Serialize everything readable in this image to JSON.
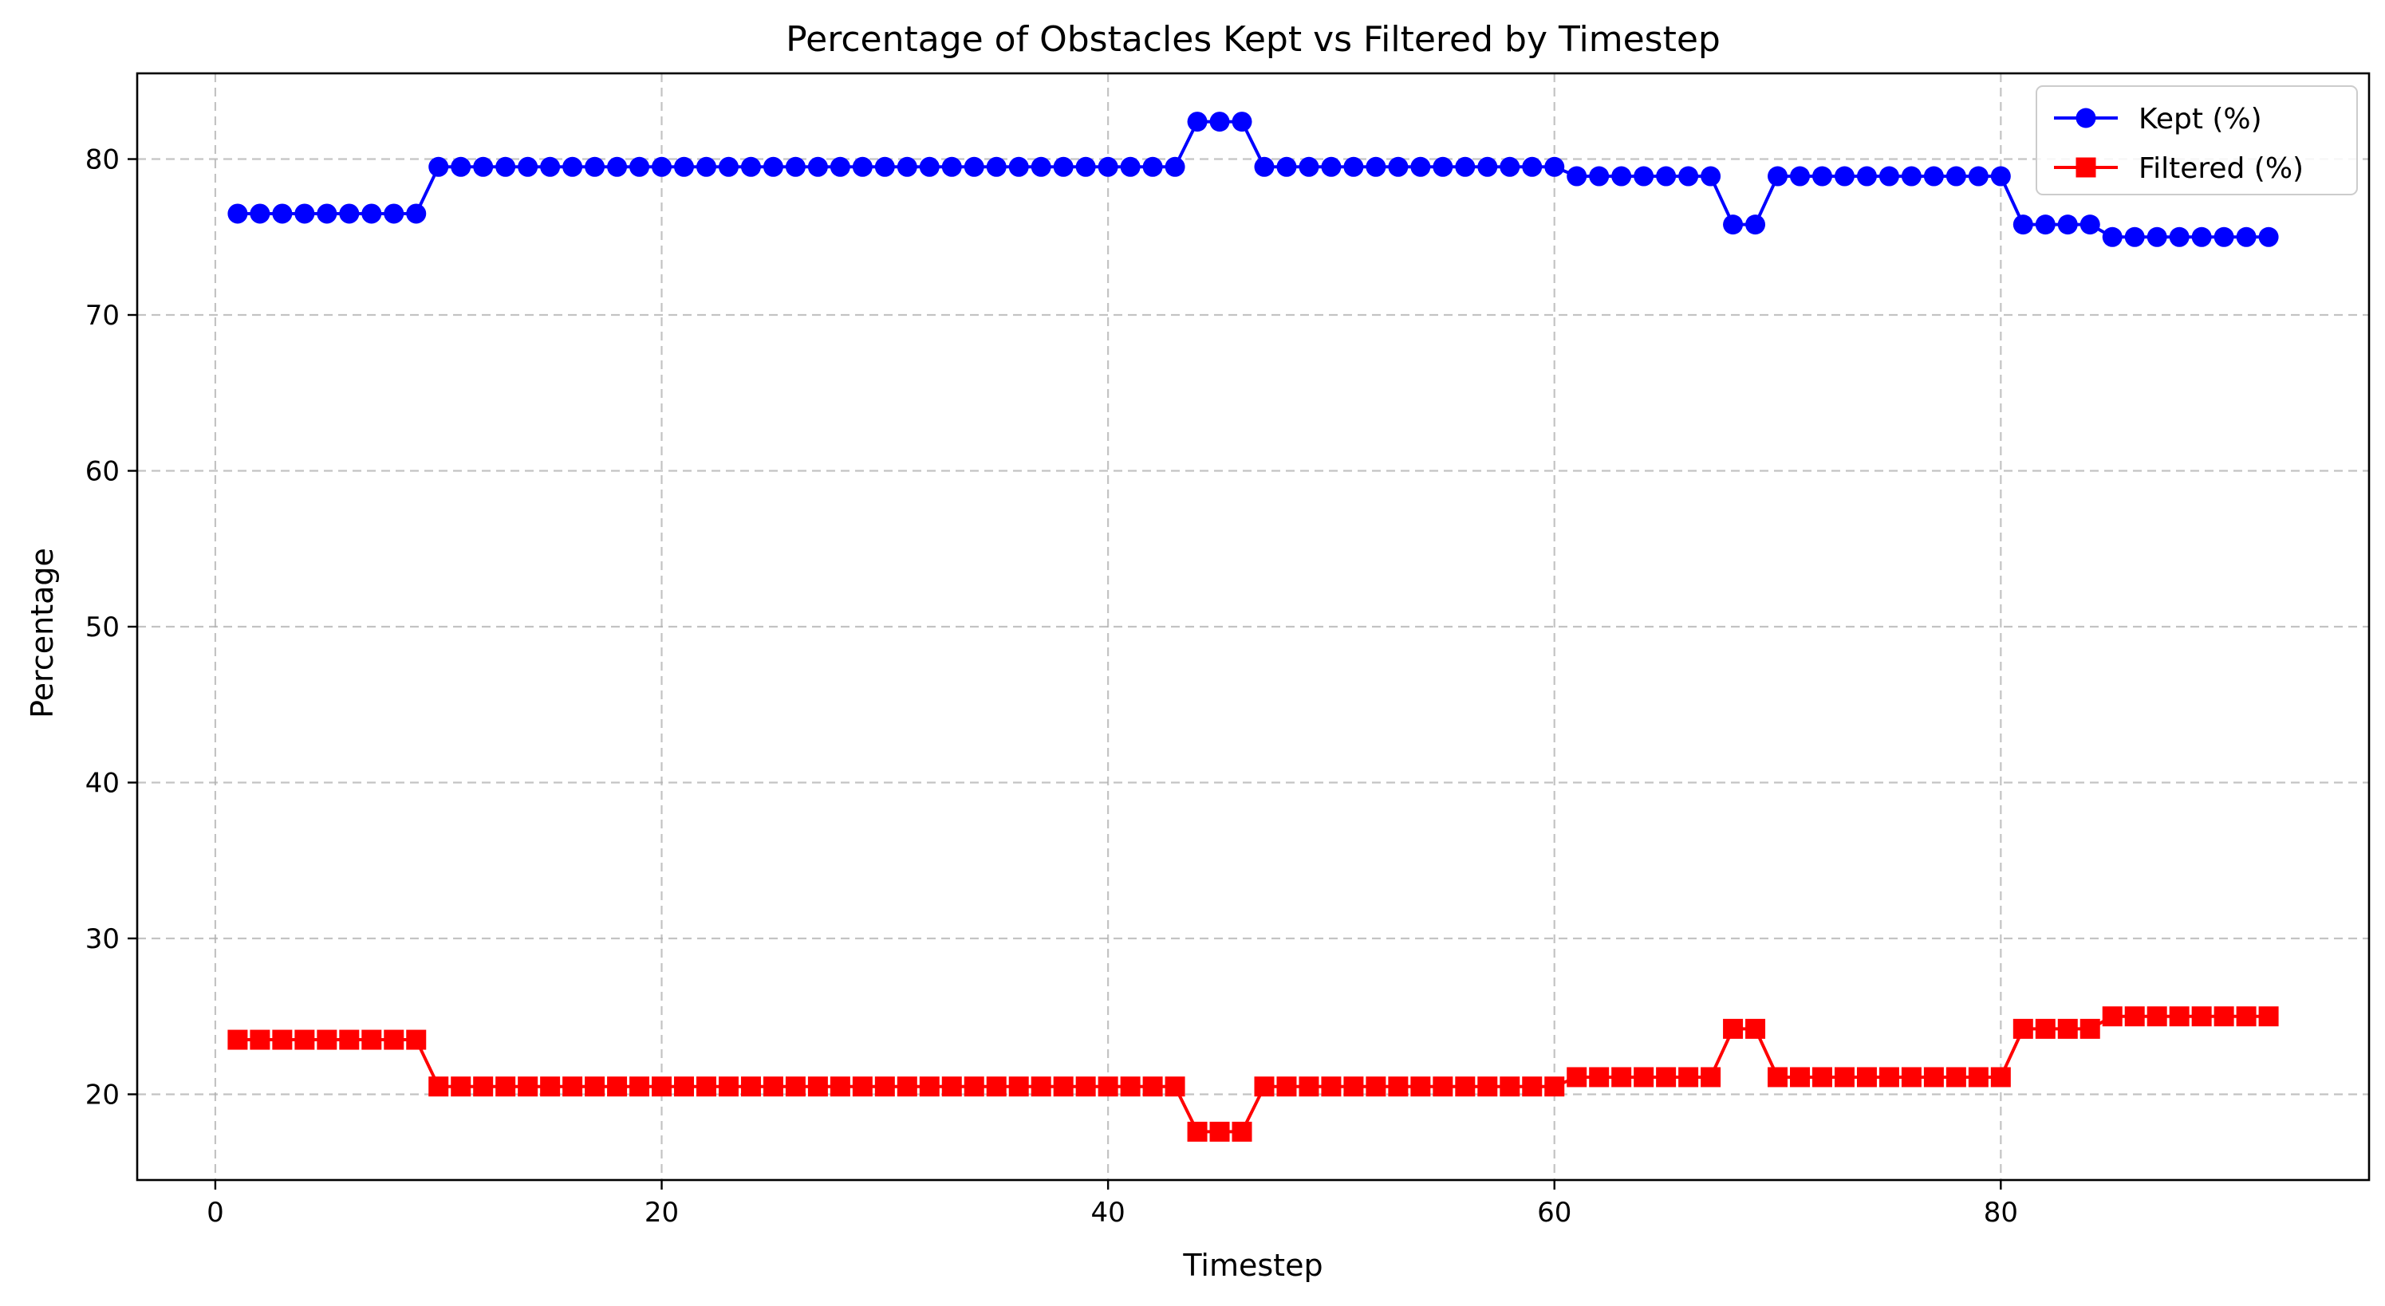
{
  "chart_data": {
    "type": "line",
    "title": "Percentage of Obstacles Kept vs Filtered by Timestep",
    "xlabel": "Timestep",
    "ylabel": "Percentage",
    "xlim": [
      -3.5,
      96.5
    ],
    "ylim": [
      14.5,
      85.5
    ],
    "xticks": [
      0,
      20,
      40,
      60,
      80
    ],
    "yticks": [
      20,
      30,
      40,
      50,
      60,
      70,
      80
    ],
    "grid": true,
    "legend_position": "top-right",
    "x": [
      1,
      2,
      3,
      4,
      5,
      6,
      7,
      8,
      9,
      10,
      11,
      12,
      13,
      14,
      15,
      16,
      17,
      18,
      19,
      20,
      21,
      22,
      23,
      24,
      25,
      26,
      27,
      28,
      29,
      30,
      31,
      32,
      33,
      34,
      35,
      36,
      37,
      38,
      39,
      40,
      41,
      42,
      43,
      44,
      45,
      46,
      47,
      48,
      49,
      50,
      51,
      52,
      53,
      54,
      55,
      56,
      57,
      58,
      59,
      60,
      61,
      62,
      63,
      64,
      65,
      66,
      67,
      68,
      69,
      70,
      71,
      72,
      73,
      74,
      75,
      76,
      77,
      78,
      79,
      80,
      81,
      82,
      83,
      84,
      85,
      86,
      87,
      88,
      89,
      90,
      91,
      92
    ],
    "series": [
      {
        "name": "Kept (%)",
        "color": "#0000ff",
        "marker": "circle",
        "values": [
          76.5,
          76.5,
          76.5,
          76.5,
          76.5,
          76.5,
          76.5,
          76.5,
          76.5,
          79.5,
          79.5,
          79.5,
          79.5,
          79.5,
          79.5,
          79.5,
          79.5,
          79.5,
          79.5,
          79.5,
          79.5,
          79.5,
          79.5,
          79.5,
          79.5,
          79.5,
          79.5,
          79.5,
          79.5,
          79.5,
          79.5,
          79.5,
          79.5,
          79.5,
          79.5,
          79.5,
          79.5,
          79.5,
          79.5,
          79.5,
          79.5,
          79.5,
          79.5,
          82.4,
          82.4,
          82.4,
          79.5,
          79.5,
          79.5,
          79.5,
          79.5,
          79.5,
          79.5,
          79.5,
          79.5,
          79.5,
          79.5,
          79.5,
          79.5,
          79.5,
          78.9,
          78.9,
          78.9,
          78.9,
          78.9,
          78.9,
          78.9,
          75.8,
          75.8,
          78.9,
          78.9,
          78.9,
          78.9,
          78.9,
          78.9,
          78.9,
          78.9,
          78.9,
          78.9,
          78.9,
          75.8,
          75.8,
          75.8,
          75.8,
          75.0,
          75.0,
          75.0,
          75.0,
          75.0,
          75.0,
          75.0,
          75.0
        ]
      },
      {
        "name": "Filtered (%)",
        "color": "#ff0000",
        "marker": "square",
        "values": [
          23.5,
          23.5,
          23.5,
          23.5,
          23.5,
          23.5,
          23.5,
          23.5,
          23.5,
          20.5,
          20.5,
          20.5,
          20.5,
          20.5,
          20.5,
          20.5,
          20.5,
          20.5,
          20.5,
          20.5,
          20.5,
          20.5,
          20.5,
          20.5,
          20.5,
          20.5,
          20.5,
          20.5,
          20.5,
          20.5,
          20.5,
          20.5,
          20.5,
          20.5,
          20.5,
          20.5,
          20.5,
          20.5,
          20.5,
          20.5,
          20.5,
          20.5,
          20.5,
          17.6,
          17.6,
          17.6,
          20.5,
          20.5,
          20.5,
          20.5,
          20.5,
          20.5,
          20.5,
          20.5,
          20.5,
          20.5,
          20.5,
          20.5,
          20.5,
          20.5,
          21.1,
          21.1,
          21.1,
          21.1,
          21.1,
          21.1,
          21.1,
          24.2,
          24.2,
          21.1,
          21.1,
          21.1,
          21.1,
          21.1,
          21.1,
          21.1,
          21.1,
          21.1,
          21.1,
          21.1,
          24.2,
          24.2,
          24.2,
          24.2,
          25.0,
          25.0,
          25.0,
          25.0,
          25.0,
          25.0,
          25.0,
          25.0
        ]
      }
    ]
  }
}
